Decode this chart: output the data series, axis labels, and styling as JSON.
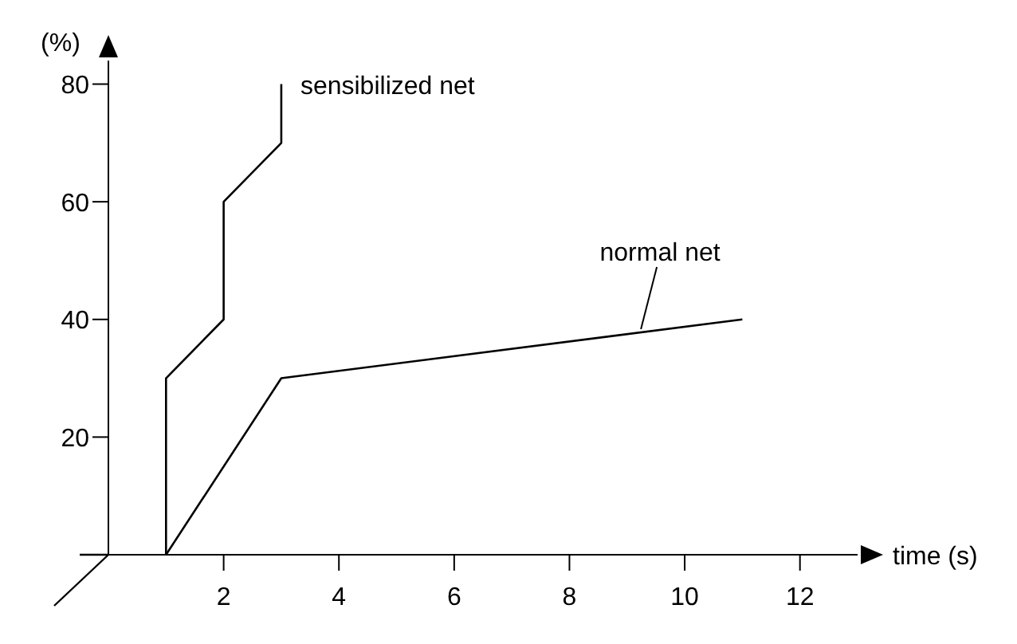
{
  "chart_data": {
    "type": "line",
    "xlabel": "time (s)",
    "ylabel": "(%)",
    "xlim": [
      0,
      13
    ],
    "ylim": [
      0,
      84
    ],
    "xticks": [
      2,
      4,
      6,
      8,
      10,
      12
    ],
    "yticks": [
      20,
      40,
      60,
      80
    ],
    "marker": "none",
    "line_style": "solid",
    "series": [
      {
        "name": "sensibilized net",
        "color": "#000000",
        "x": [
          1,
          1,
          2,
          2,
          3,
          3
        ],
        "values": [
          0,
          30,
          40,
          60,
          70,
          80
        ]
      },
      {
        "name": "normal net",
        "color": "#000000",
        "x": [
          1,
          3,
          11
        ],
        "values": [
          0,
          30,
          40
        ]
      }
    ]
  }
}
